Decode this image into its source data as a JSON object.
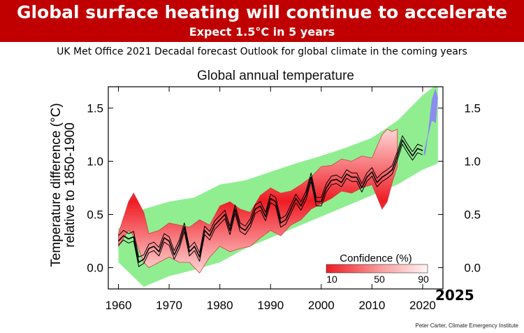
{
  "header": {
    "title": "Global surface heating will continue to accelerate",
    "subtitle": "Expect 1.5°C in 5 years",
    "source_line": "UK Met Office 2021 Decadal forecast Outlook for global climate in the coming years"
  },
  "credit": "Peter Carter, Climate Emergency Institute",
  "colors": {
    "banner": "#c00000",
    "uncertainty_band": "#90ee90",
    "hindcast_red": "#ee1c24",
    "forecast_blue": "#8c8cf0",
    "observations": "#000000"
  },
  "chart_data": {
    "type": "line",
    "title": "Global annual temperature",
    "ylabel": "Temperature difference (°C) relative to 1850-1900",
    "xlim": [
      1958,
      2024
    ],
    "ylim": [
      -0.2,
      1.7
    ],
    "x_ticks": [
      "1960",
      "1970",
      "1980",
      "1990",
      "2000",
      "2010",
      "2020"
    ],
    "y_ticks_left": [
      "0.0",
      "0.5",
      "1.0",
      "1.5"
    ],
    "y_ticks_right": [
      "0.0",
      "0.5",
      "1.0",
      "1.5"
    ],
    "highlight_label": "2025",
    "legend": {
      "title": "Confidence (%)",
      "ticks": [
        "10",
        "50",
        "90"
      ],
      "placement": "bottom-right"
    },
    "band_upper": {
      "x": [
        1960,
        1965,
        1970,
        1975,
        1980,
        1985,
        1990,
        1995,
        2000,
        2005,
        2010,
        2015,
        2020,
        2023
      ],
      "y": [
        0.37,
        0.55,
        0.62,
        0.66,
        0.78,
        0.82,
        0.9,
        0.98,
        1.05,
        1.13,
        1.22,
        1.38,
        1.62,
        1.73
      ]
    },
    "band_lower": {
      "x": [
        1960,
        1965,
        1970,
        1975,
        1980,
        1985,
        1990,
        1995,
        2000,
        2005,
        2010,
        2015,
        2020,
        2023
      ],
      "y": [
        0.05,
        -0.18,
        -0.08,
        -0.02,
        0.05,
        0.18,
        0.28,
        0.38,
        0.48,
        0.58,
        0.68,
        0.78,
        0.92,
        0.98
      ]
    },
    "hindcast_upper": {
      "x": [
        1960,
        1962,
        1963,
        1965,
        1966,
        1968,
        1970,
        1972,
        1974,
        1976,
        1978,
        1980,
        1982,
        1984,
        1986,
        1988,
        1990,
        1992,
        1994,
        1996,
        1998,
        2000,
        2002,
        2004,
        2006,
        2008,
        2010,
        2012,
        2013,
        2014,
        2015
      ],
      "y": [
        0.32,
        0.62,
        0.7,
        0.52,
        0.32,
        0.35,
        0.42,
        0.4,
        0.38,
        0.45,
        0.4,
        0.58,
        0.62,
        0.55,
        0.52,
        0.68,
        0.75,
        0.7,
        0.72,
        0.78,
        0.85,
        0.95,
        0.96,
        1.02,
        1.0,
        1.05,
        1.03,
        1.25,
        1.3,
        1.28,
        1.3
      ]
    },
    "hindcast_lower": {
      "x": [
        1960,
        1962,
        1963,
        1965,
        1966,
        1968,
        1970,
        1972,
        1974,
        1976,
        1978,
        1980,
        1982,
        1984,
        1986,
        1988,
        1990,
        1992,
        1994,
        1996,
        1998,
        2000,
        2002,
        2004,
        2006,
        2008,
        2010,
        2012,
        2013,
        2014,
        2015
      ],
      "y": [
        0.2,
        0.35,
        0.3,
        0.05,
        0.0,
        0.05,
        0.1,
        0.05,
        0.05,
        -0.05,
        0.1,
        0.2,
        0.15,
        0.18,
        0.2,
        0.28,
        0.35,
        0.3,
        0.4,
        0.45,
        0.55,
        0.6,
        0.65,
        0.72,
        0.7,
        0.75,
        0.78,
        0.55,
        0.62,
        0.8,
        0.95
      ]
    },
    "forecast_blue": {
      "x": [
        2020.2,
        2021,
        2021.8,
        2022.5,
        2023,
        2022.6,
        2021.8,
        2021,
        2020.5
      ],
      "y": [
        1.08,
        1.25,
        1.58,
        1.68,
        1.6,
        1.36,
        1.38,
        1.22,
        1.05
      ]
    },
    "series": [
      {
        "x": [
          1960,
          1961,
          1962,
          1963,
          1964,
          1965,
          1966,
          1967,
          1968,
          1969,
          1970,
          1971,
          1972,
          1973,
          1974,
          1975,
          1976,
          1977,
          1978,
          1979,
          1980,
          1981,
          1982,
          1983,
          1984,
          1985,
          1986,
          1987,
          1988,
          1989,
          1990,
          1991,
          1992,
          1993,
          1994,
          1995,
          1996,
          1997,
          1998,
          1999,
          2000,
          2001,
          2002,
          2003,
          2004,
          2005,
          2006,
          2007,
          2008,
          2009,
          2010,
          2011,
          2012,
          2013,
          2014,
          2015,
          2016,
          2017,
          2018,
          2019,
          2020
        ],
        "y": [
          0.25,
          0.3,
          0.27,
          0.29,
          0.05,
          0.08,
          0.18,
          0.2,
          0.15,
          0.28,
          0.25,
          0.12,
          0.22,
          0.38,
          0.15,
          0.2,
          0.1,
          0.35,
          0.3,
          0.4,
          0.45,
          0.5,
          0.35,
          0.55,
          0.38,
          0.35,
          0.42,
          0.55,
          0.58,
          0.48,
          0.65,
          0.62,
          0.42,
          0.45,
          0.55,
          0.65,
          0.58,
          0.68,
          0.85,
          0.62,
          0.62,
          0.75,
          0.82,
          0.83,
          0.8,
          0.88,
          0.85,
          0.85,
          0.75,
          0.85,
          0.9,
          0.8,
          0.85,
          0.88,
          0.92,
          1.05,
          1.2,
          1.12,
          1.05,
          1.12,
          1.1
        ]
      },
      {
        "x": [
          1960,
          1961,
          1962,
          1963,
          1964,
          1965,
          1966,
          1967,
          1968,
          1969,
          1970,
          1971,
          1972,
          1973,
          1974,
          1975,
          1976,
          1977,
          1978,
          1979,
          1980,
          1981,
          1982,
          1983,
          1984,
          1985,
          1986,
          1987,
          1988,
          1989,
          1990,
          1991,
          1992,
          1993,
          1994,
          1995,
          1996,
          1997,
          1998,
          1999,
          2000,
          2001,
          2002,
          2003,
          2004,
          2005,
          2006,
          2007,
          2008,
          2009,
          2010,
          2011,
          2012,
          2013,
          2014,
          2015,
          2016,
          2017,
          2018,
          2019,
          2020
        ],
        "y": [
          0.3,
          0.35,
          0.32,
          0.34,
          0.1,
          0.12,
          0.22,
          0.24,
          0.19,
          0.32,
          0.29,
          0.16,
          0.26,
          0.42,
          0.19,
          0.24,
          0.14,
          0.39,
          0.34,
          0.44,
          0.49,
          0.54,
          0.39,
          0.59,
          0.42,
          0.39,
          0.46,
          0.59,
          0.62,
          0.52,
          0.69,
          0.66,
          0.46,
          0.49,
          0.59,
          0.69,
          0.62,
          0.72,
          0.89,
          0.66,
          0.66,
          0.79,
          0.86,
          0.87,
          0.84,
          0.92,
          0.89,
          0.89,
          0.79,
          0.89,
          0.94,
          0.84,
          0.89,
          0.92,
          0.96,
          1.09,
          1.24,
          1.16,
          1.09,
          1.16,
          1.14
        ]
      },
      {
        "x": [
          1960,
          1961,
          1962,
          1963,
          1964,
          1965,
          1966,
          1967,
          1968,
          1969,
          1970,
          1971,
          1972,
          1973,
          1974,
          1975,
          1976,
          1977,
          1978,
          1979,
          1980,
          1981,
          1982,
          1983,
          1984,
          1985,
          1986,
          1987,
          1988,
          1989,
          1990,
          1991,
          1992,
          1993,
          1994,
          1995,
          1996,
          1997,
          1998,
          1999,
          2000,
          2001,
          2002,
          2003,
          2004,
          2005,
          2006,
          2007,
          2008,
          2009,
          2010,
          2011,
          2012,
          2013,
          2014,
          2015,
          2016,
          2017,
          2018,
          2019,
          2020
        ],
        "y": [
          0.21,
          0.26,
          0.23,
          0.25,
          0.01,
          0.04,
          0.14,
          0.16,
          0.11,
          0.24,
          0.21,
          0.08,
          0.18,
          0.34,
          0.11,
          0.16,
          0.06,
          0.31,
          0.26,
          0.36,
          0.41,
          0.46,
          0.31,
          0.51,
          0.34,
          0.31,
          0.38,
          0.51,
          0.54,
          0.44,
          0.61,
          0.58,
          0.38,
          0.41,
          0.51,
          0.61,
          0.54,
          0.64,
          0.81,
          0.58,
          0.58,
          0.71,
          0.78,
          0.79,
          0.76,
          0.84,
          0.81,
          0.81,
          0.71,
          0.81,
          0.86,
          0.76,
          0.81,
          0.84,
          0.88,
          1.01,
          1.16,
          1.08,
          1.01,
          1.08,
          1.06
        ]
      }
    ]
  }
}
